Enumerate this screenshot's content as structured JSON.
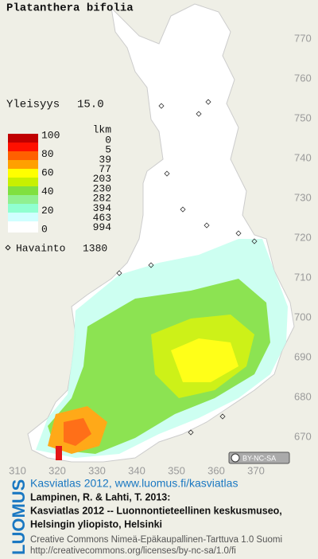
{
  "header": {
    "title": "Platanthera bifolia",
    "frequency_label": "Yleisyys",
    "frequency": "15.0"
  },
  "legend": {
    "scale_labels": [
      100,
      80,
      60,
      40,
      20,
      0
    ],
    "count_header": "lkm",
    "counts": [
      0,
      5,
      39,
      77,
      203,
      230,
      282,
      394,
      463,
      994
    ],
    "colors": [
      "#c00000",
      "#ff1000",
      "#ff6000",
      "#ffa000",
      "#ffff00",
      "#c8f000",
      "#80e040",
      "#90f090",
      "#90ffd0",
      "#d0ffff"
    ],
    "observations_label": "Havainto",
    "observations": 1380
  },
  "map": {
    "y_axis": [
      770,
      760,
      750,
      740,
      730,
      720,
      710,
      700,
      690,
      680,
      670
    ],
    "x_axis": [
      310,
      320,
      330,
      340,
      350,
      360,
      370
    ],
    "license_badge": "BY-NC-SA"
  },
  "footer": {
    "brand": "LUOMUS",
    "link": "Kasviatlas 2012, www.luomus.fi/kasviatlas",
    "citation": [
      "Lampinen, R. & Lahti, T. 2013:",
      "Kasviatlas 2012 -- Luonnontieteellinen keskusmuseo,",
      "Helsingin yliopisto, Helsinki"
    ],
    "license": [
      "Creative Commons Nimeä-Epäkaupallinen-Tarttuva 1.0 Suomi",
      "http://creativecommons.org/licenses/by-nc-sa/1.0/fi"
    ]
  }
}
